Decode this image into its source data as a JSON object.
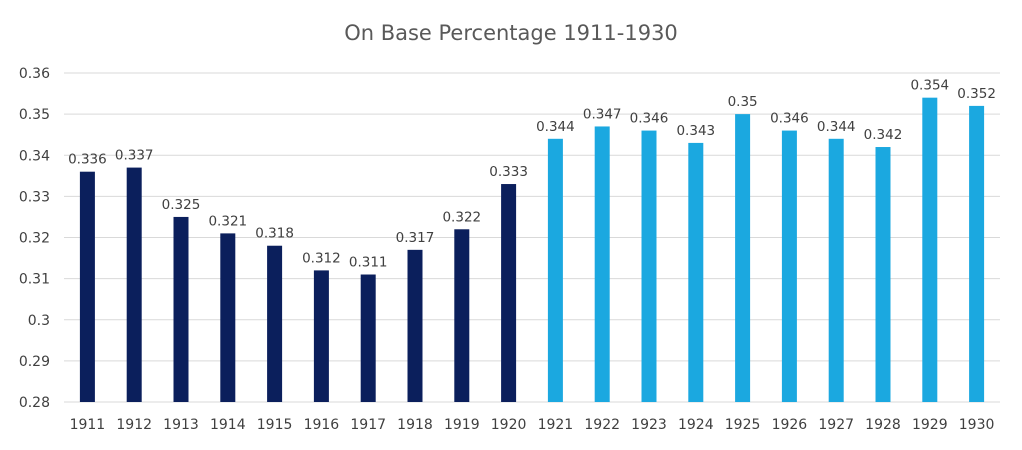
{
  "chart_data": {
    "type": "bar",
    "title": "On Base Percentage 1911-1930",
    "xlabel": "",
    "ylabel": "",
    "ylim": [
      0.28,
      0.36
    ],
    "yticks": [
      "0.28",
      "0.29",
      "0.3",
      "0.31",
      "0.32",
      "0.33",
      "0.34",
      "0.35",
      "0.36"
    ],
    "grid": true,
    "legend": "none",
    "categories": [
      "1911",
      "1912",
      "1913",
      "1914",
      "1915",
      "1916",
      "1917",
      "1918",
      "1919",
      "1920",
      "1921",
      "1922",
      "1923",
      "1924",
      "1925",
      "1926",
      "1927",
      "1928",
      "1929",
      "1930"
    ],
    "values": [
      0.336,
      0.337,
      0.325,
      0.321,
      0.318,
      0.312,
      0.311,
      0.317,
      0.322,
      0.333,
      0.344,
      0.347,
      0.346,
      0.343,
      0.35,
      0.346,
      0.344,
      0.342,
      0.354,
      0.352
    ],
    "data_labels": [
      "0.336",
      "0.337",
      "0.325",
      "0.321",
      "0.318",
      "0.312",
      "0.311",
      "0.317",
      "0.322",
      "0.333",
      "0.344",
      "0.347",
      "0.346",
      "0.343",
      "0.35",
      "0.346",
      "0.344",
      "0.342",
      "0.354",
      "0.352"
    ],
    "colors": {
      "1911-1920": "#0b1f5c",
      "1921-1930": "#1ba8e0"
    },
    "bar_colors": [
      "#0b1f5c",
      "#0b1f5c",
      "#0b1f5c",
      "#0b1f5c",
      "#0b1f5c",
      "#0b1f5c",
      "#0b1f5c",
      "#0b1f5c",
      "#0b1f5c",
      "#0b1f5c",
      "#1ba8e0",
      "#1ba8e0",
      "#1ba8e0",
      "#1ba8e0",
      "#1ba8e0",
      "#1ba8e0",
      "#1ba8e0",
      "#1ba8e0",
      "#1ba8e0",
      "#1ba8e0"
    ]
  }
}
